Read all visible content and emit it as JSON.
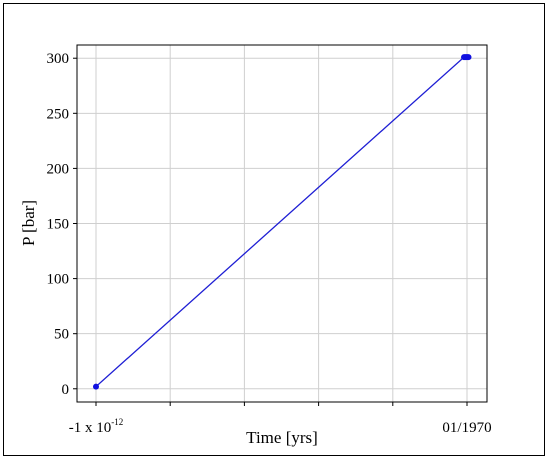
{
  "chart_data": {
    "type": "line",
    "title": "",
    "xlabel": "Time [yrs]",
    "ylabel": "P [bar]",
    "x_tick_labels": {
      "left": {
        "base": "-1 x 10",
        "exponent": "-12"
      },
      "right": "01/1970"
    },
    "y_ticks": [
      0,
      50,
      100,
      150,
      200,
      250,
      300
    ],
    "ylim": [
      -12,
      312
    ],
    "grid": true,
    "line_color": "#1f1fd4",
    "marker_color": "#1010e0",
    "series": [
      {
        "x": [
          0.0,
          0.992,
          0.995,
          0.998,
          1.001,
          1.004
        ],
        "y": [
          2,
          301,
          301,
          301,
          301,
          301
        ]
      }
    ]
  }
}
